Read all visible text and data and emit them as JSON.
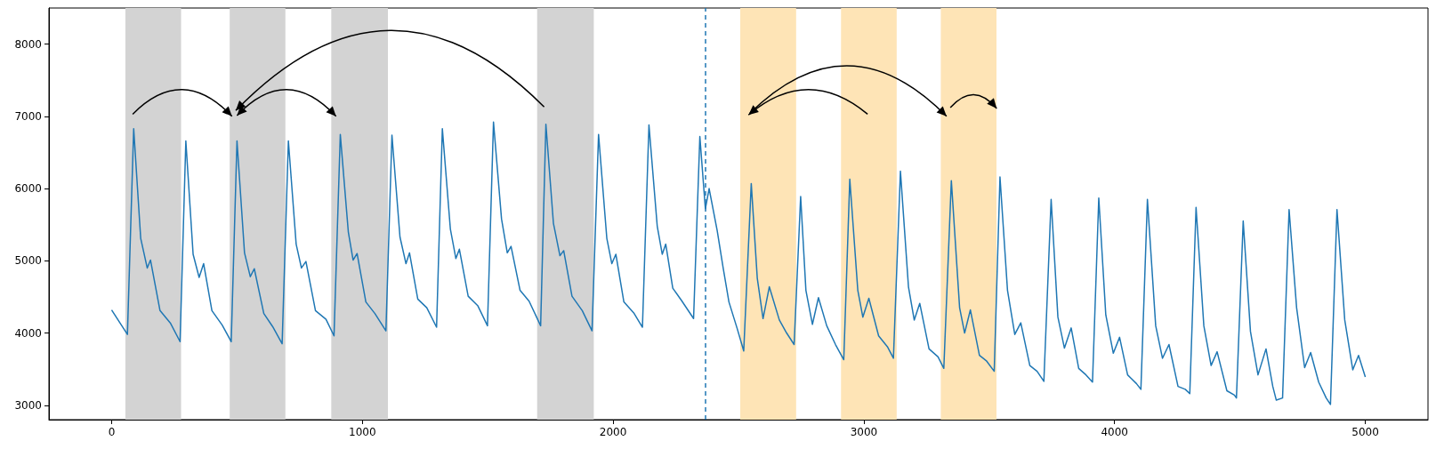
{
  "chart_data": {
    "type": "line",
    "color": "#1f77b4",
    "x": [
      0,
      63,
      88,
      116,
      142,
      155,
      193,
      234,
      273,
      296,
      325,
      349,
      367,
      400,
      441,
      477,
      500,
      530,
      553,
      569,
      607,
      642,
      680,
      705,
      736,
      757,
      775,
      813,
      855,
      887,
      912,
      944,
      963,
      979,
      1014,
      1050,
      1094,
      1118,
      1150,
      1174,
      1188,
      1221,
      1257,
      1296,
      1319,
      1351,
      1373,
      1387,
      1422,
      1460,
      1499,
      1523,
      1555,
      1578,
      1593,
      1629,
      1665,
      1711,
      1732,
      1762,
      1788,
      1803,
      1836,
      1877,
      1916,
      1942,
      1975,
      1995,
      2011,
      2043,
      2084,
      2117,
      2143,
      2176,
      2196,
      2210,
      2238,
      2273,
      2321,
      2346,
      2368,
      2383,
      2415,
      2439,
      2462,
      2495,
      2521,
      2551,
      2575,
      2598,
      2623,
      2663,
      2692,
      2722,
      2748,
      2769,
      2795,
      2819,
      2852,
      2887,
      2920,
      2944,
      2976,
      2996,
      3020,
      3059,
      3094,
      3118,
      3146,
      3178,
      3201,
      3223,
      3260,
      3296,
      3319,
      3349,
      3382,
      3402,
      3425,
      3461,
      3490,
      3520,
      3543,
      3573,
      3602,
      3626,
      3662,
      3691,
      3718,
      3747,
      3774,
      3800,
      3827,
      3857,
      3886,
      3912,
      3937,
      3965,
      3995,
      4020,
      4052,
      4087,
      4105,
      4131,
      4164,
      4191,
      4217,
      4253,
      4282,
      4300,
      4325,
      4356,
      4385,
      4409,
      4448,
      4478,
      4486,
      4513,
      4542,
      4572,
      4604,
      4631,
      4645,
      4670,
      4696,
      4726,
      4758,
      4782,
      4814,
      4844,
      4861,
      4887,
      4918,
      4950,
      4973,
      5000
    ],
    "values": [
      4320,
      3980,
      6830,
      5310,
      4900,
      5010,
      4310,
      4140,
      3880,
      6660,
      5090,
      4770,
      4960,
      4310,
      4110,
      3880,
      6660,
      5110,
      4780,
      4890,
      4270,
      4090,
      3850,
      6660,
      5230,
      4900,
      4990,
      4310,
      4190,
      3960,
      6750,
      5400,
      5010,
      5100,
      4430,
      4270,
      4030,
      6740,
      5330,
      4960,
      5110,
      4470,
      4350,
      4080,
      6830,
      5440,
      5030,
      5160,
      4510,
      4380,
      4100,
      6920,
      5580,
      5110,
      5200,
      4590,
      4440,
      4100,
      6890,
      5520,
      5070,
      5140,
      4510,
      4310,
      4030,
      6750,
      5310,
      4960,
      5090,
      4430,
      4270,
      4080,
      6880,
      5480,
      5090,
      5230,
      4620,
      4450,
      4200,
      6720,
      5720,
      6000,
      5420,
      4900,
      4430,
      4060,
      3750,
      6070,
      4760,
      4200,
      4640,
      4180,
      4000,
      3840,
      5890,
      4590,
      4120,
      4490,
      4100,
      3840,
      3630,
      6130,
      4590,
      4220,
      4480,
      3960,
      3810,
      3650,
      6240,
      4640,
      4180,
      4410,
      3780,
      3670,
      3510,
      6110,
      4350,
      4000,
      4320,
      3690,
      3610,
      3470,
      6160,
      4590,
      3980,
      4140,
      3550,
      3470,
      3330,
      5850,
      4220,
      3790,
      4070,
      3510,
      3420,
      3320,
      5870,
      4250,
      3720,
      3940,
      3420,
      3300,
      3220,
      5850,
      4100,
      3650,
      3840,
      3260,
      3220,
      3160,
      5740,
      4100,
      3550,
      3740,
      3200,
      3140,
      3100,
      5550,
      4020,
      3420,
      3780,
      3260,
      3070,
      3100,
      5710,
      4350,
      3520,
      3730,
      3320,
      3100,
      3010,
      5710,
      4180,
      3490,
      3690,
      3390
    ],
    "xlim": [
      -250,
      5250
    ],
    "xticks": [
      0,
      1000,
      2000,
      3000,
      4000,
      5000
    ],
    "ylim": [
      2800,
      8500
    ],
    "yticks": [
      3000,
      4000,
      5000,
      6000,
      7000,
      8000
    ],
    "bands": [
      {
        "axis": "x",
        "from": 55,
        "to": 277,
        "color": "#d3d3d3"
      },
      {
        "axis": "x",
        "from": 471,
        "to": 693,
        "color": "#d3d3d3"
      },
      {
        "axis": "x",
        "from": 876,
        "to": 1102,
        "color": "#d3d3d3"
      },
      {
        "axis": "x",
        "from": 1697,
        "to": 1923,
        "color": "#d3d3d3"
      },
      {
        "axis": "x",
        "from": 2507,
        "to": 2730,
        "color": "#fee4b6"
      },
      {
        "axis": "x",
        "from": 2909,
        "to": 3131,
        "color": "#fee4b6"
      },
      {
        "axis": "x",
        "from": 3307,
        "to": 3529,
        "color": "#fee4b6"
      }
    ],
    "ref_lines": [
      {
        "axis": "x",
        "value": 2369,
        "color": "#1f77b4",
        "line_style": "dashed"
      }
    ]
  }
}
